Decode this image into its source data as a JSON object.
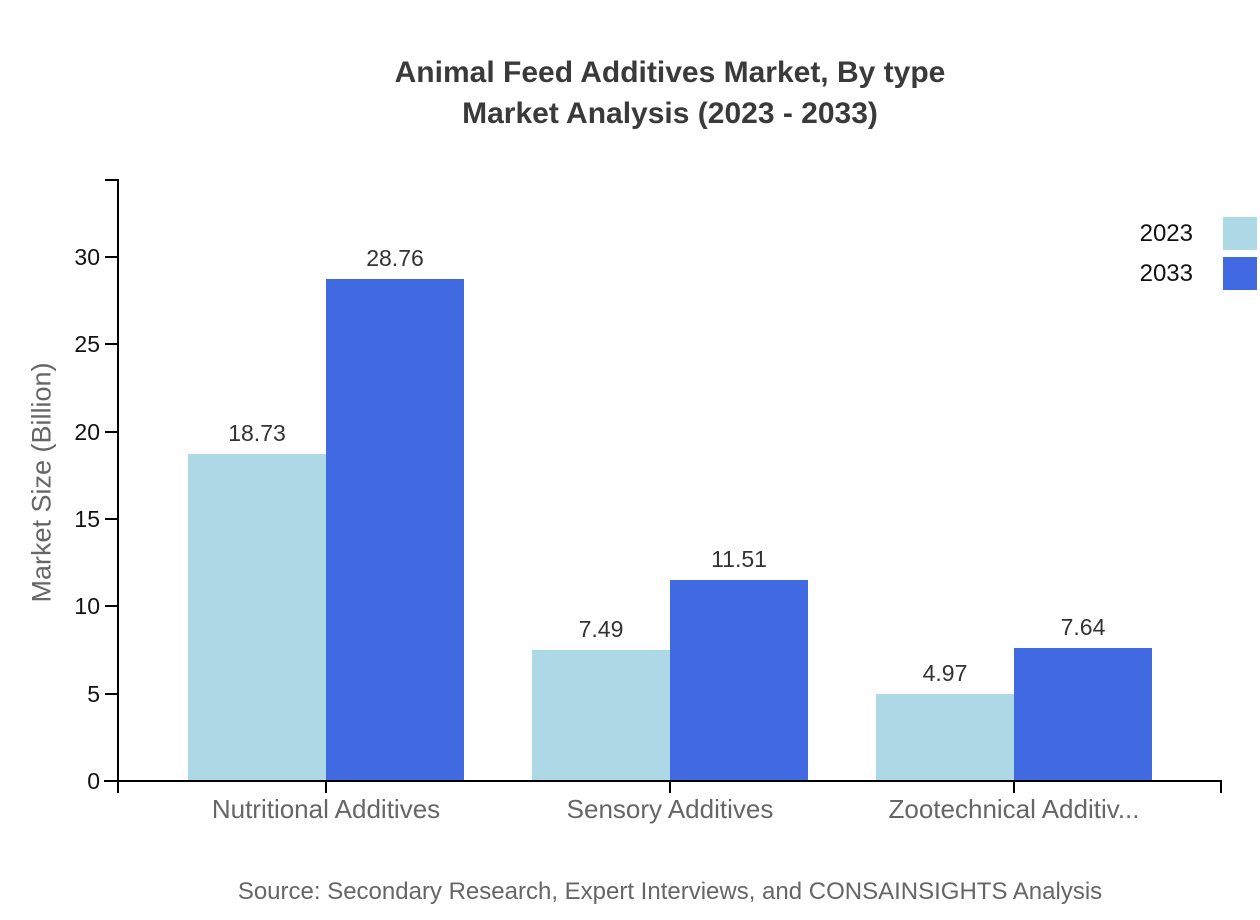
{
  "title": {
    "line1": "Animal Feed Additives Market, By type",
    "line2": "Market Analysis (2023 - 2033)"
  },
  "source": "Source: Secondary Research, Expert Interviews, and CONSAINSIGHTS Analysis",
  "colors": {
    "series_2023": "#ADD8E6",
    "series_2033": "#4169E1",
    "axis": "#000000",
    "title_text": "#3a3a3a",
    "muted_text": "#666666",
    "value_text": "#333333"
  },
  "chart_data": {
    "type": "bar",
    "title": "Animal Feed Additives Market, By type — Market Analysis (2023 - 2033)",
    "categories": [
      "Nutritional Additives",
      "Sensory Additives",
      "Zootechnical Additiv..."
    ],
    "series": [
      {
        "name": "2023",
        "color": "#ADD8E6",
        "values": [
          18.73,
          7.49,
          4.97
        ]
      },
      {
        "name": "2033",
        "color": "#4169E1",
        "values": [
          28.76,
          11.51,
          7.64
        ]
      }
    ],
    "data_labels": [
      [
        "18.73",
        "7.49",
        "4.97"
      ],
      [
        "28.76",
        "11.51",
        "7.64"
      ]
    ],
    "xlabel": "",
    "ylabel": "Market Size (Billion)",
    "ylim": [
      0,
      34.4
    ],
    "yticks": [
      0,
      5,
      10,
      15,
      20,
      25,
      30
    ],
    "grid": false,
    "legend_position": "top-right"
  }
}
